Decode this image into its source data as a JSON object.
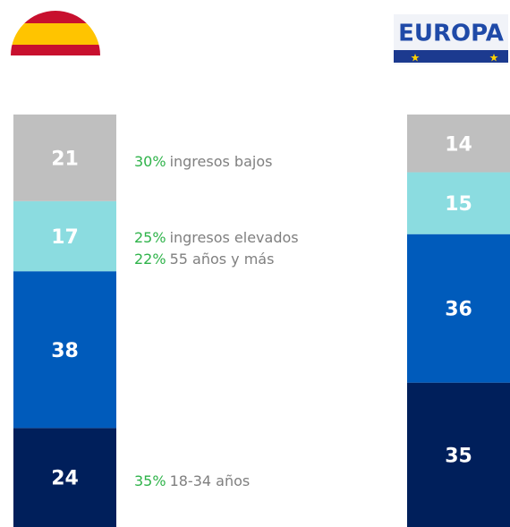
{
  "chart_data": {
    "type": "stacked_bar",
    "categories": [
      null,
      "EUROPA"
    ],
    "series": [
      {
        "color": "#001f5b",
        "values": [
          24,
          35
        ]
      },
      {
        "color": "#005bbb",
        "values": [
          38,
          36
        ]
      },
      {
        "color": "#8bdce0",
        "values": [
          17,
          15
        ]
      },
      {
        "color": "#bfbfbf",
        "values": [
          21,
          14
        ]
      }
    ],
    "ylim": [
      0,
      100
    ],
    "annotations": [
      {
        "highlight": "30%",
        "text": "ingresos bajos"
      },
      {
        "highlight": "25%",
        "text": "ingresos elevados"
      },
      {
        "highlight": "22%",
        "text": "55 años y más"
      },
      {
        "highlight": "35%",
        "text": "18-34 años"
      }
    ]
  }
}
